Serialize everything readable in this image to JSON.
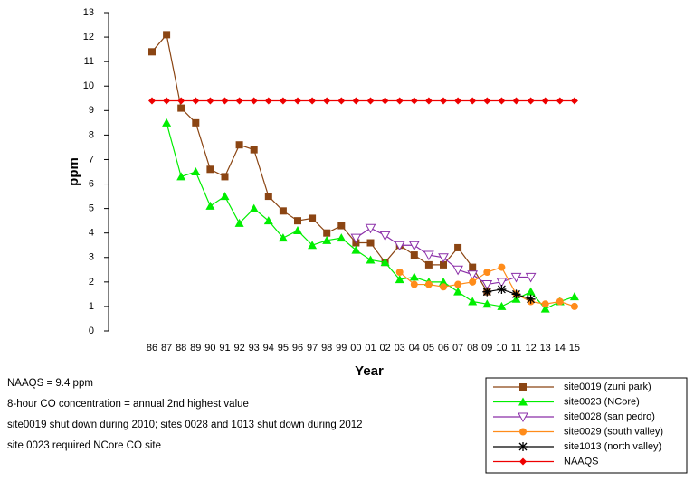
{
  "chart_data": {
    "type": "line",
    "x_label": "Year",
    "y_label": "ppm",
    "categories": [
      "86",
      "87",
      "88",
      "89",
      "90",
      "91",
      "92",
      "93",
      "94",
      "95",
      "96",
      "97",
      "98",
      "99",
      "00",
      "01",
      "02",
      "03",
      "04",
      "05",
      "06",
      "07",
      "08",
      "09",
      "10",
      "11",
      "12",
      "13",
      "14",
      "15"
    ],
    "ylim": [
      0,
      13
    ],
    "yticks": [
      0,
      1,
      2,
      3,
      4,
      5,
      6,
      7,
      8,
      9,
      10,
      11,
      12,
      13
    ],
    "series": [
      {
        "name": "site0019 (zuni park)",
        "color": "#8b4513",
        "marker": "square",
        "values": [
          11.4,
          12.1,
          9.1,
          8.5,
          6.6,
          6.3,
          7.6,
          7.4,
          5.5,
          4.9,
          4.5,
          4.6,
          4.0,
          4.3,
          3.6,
          3.6,
          2.8,
          3.5,
          3.1,
          2.7,
          2.7,
          3.4,
          2.6,
          1.6,
          null,
          null,
          null,
          null,
          null,
          null
        ]
      },
      {
        "name": "site0023 (NCore)",
        "color": "#00ee00",
        "marker": "triangle-up",
        "values": [
          null,
          8.5,
          6.3,
          6.5,
          5.1,
          5.5,
          4.4,
          5.0,
          4.5,
          3.8,
          4.1,
          3.5,
          3.7,
          3.8,
          3.3,
          2.9,
          2.8,
          2.1,
          2.2,
          2.0,
          2.0,
          1.6,
          1.2,
          1.1,
          1.0,
          1.3,
          1.6,
          0.9,
          1.2,
          1.4
        ]
      },
      {
        "name": "site0028 (san pedro)",
        "color": "#8b2fa8",
        "marker": "triangle-down-open",
        "values": [
          null,
          null,
          null,
          null,
          null,
          null,
          null,
          null,
          null,
          null,
          null,
          null,
          null,
          null,
          3.8,
          4.2,
          3.9,
          3.5,
          3.5,
          3.1,
          3.0,
          2.5,
          2.3,
          1.9,
          2.0,
          2.2,
          2.2,
          null,
          null,
          null
        ]
      },
      {
        "name": "site0029 (south valley)",
        "color": "#ff8c1a",
        "marker": "circle",
        "values": [
          null,
          null,
          null,
          null,
          null,
          null,
          null,
          null,
          null,
          null,
          null,
          null,
          null,
          null,
          null,
          null,
          null,
          2.4,
          1.9,
          1.9,
          1.8,
          1.9,
          2.0,
          2.4,
          2.6,
          1.5,
          1.2,
          1.1,
          1.2,
          1.0
        ]
      },
      {
        "name": "site1013 (north valley)",
        "color": "#000000",
        "marker": "star",
        "values": [
          null,
          null,
          null,
          null,
          null,
          null,
          null,
          null,
          null,
          null,
          null,
          null,
          null,
          null,
          null,
          null,
          null,
          null,
          null,
          null,
          null,
          null,
          null,
          1.6,
          1.7,
          1.5,
          1.3,
          null,
          null,
          null
        ]
      },
      {
        "name": "NAAQS",
        "color": "#ee0000",
        "marker": "diamond",
        "values": [
          9.4,
          9.4,
          9.4,
          9.4,
          9.4,
          9.4,
          9.4,
          9.4,
          9.4,
          9.4,
          9.4,
          9.4,
          9.4,
          9.4,
          9.4,
          9.4,
          9.4,
          9.4,
          9.4,
          9.4,
          9.4,
          9.4,
          9.4,
          9.4,
          9.4,
          9.4,
          9.4,
          9.4,
          9.4,
          9.4
        ]
      }
    ],
    "annotations": [
      "NAAQS = 9.4 ppm",
      "8-hour CO concentration = annual 2nd highest value",
      "site0019 shut down during 2010; sites 0028 and 1013 shut down during 2012",
      "site 0023 required NCore CO site"
    ]
  }
}
